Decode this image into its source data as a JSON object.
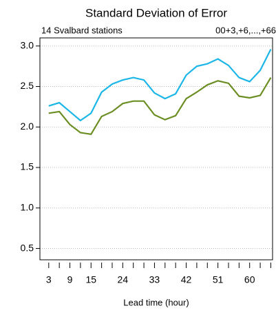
{
  "chart_data": {
    "type": "line",
    "title": "Standard Deviation of Error",
    "subtitle_left": "14 Svalbard stations",
    "subtitle_right": "00+3,+6,...,+66",
    "xlabel": "Lead time (hour)",
    "x": [
      3,
      6,
      9,
      12,
      15,
      18,
      21,
      24,
      27,
      30,
      33,
      36,
      39,
      42,
      45,
      48,
      51,
      54,
      57,
      60,
      63,
      66
    ],
    "series": [
      {
        "color": "#1ab6e8",
        "values": [
          2.26,
          2.3,
          2.19,
          2.08,
          2.17,
          2.43,
          2.53,
          2.58,
          2.61,
          2.58,
          2.42,
          2.35,
          2.41,
          2.64,
          2.75,
          2.78,
          2.84,
          2.76,
          2.61,
          2.56,
          2.7,
          2.96
        ]
      },
      {
        "color": "#6b8e23",
        "values": [
          2.17,
          2.19,
          2.03,
          1.93,
          1.91,
          2.13,
          2.19,
          2.29,
          2.32,
          2.32,
          2.15,
          2.09,
          2.14,
          2.35,
          2.43,
          2.52,
          2.57,
          2.54,
          2.38,
          2.36,
          2.39,
          2.61
        ]
      }
    ],
    "xlim": [
      0.5,
      66.5
    ],
    "xticks": [
      3,
      9,
      15,
      24,
      33,
      42,
      51,
      60
    ],
    "ylim": [
      0.36,
      3.1
    ],
    "yticks": [
      0.5,
      {
        "value": 1,
        "label": "1.0"
      },
      1.5,
      {
        "value": 2,
        "label": "2.0"
      },
      2.5,
      {
        "value": 3,
        "label": "3.0"
      }
    ],
    "grid": true
  }
}
